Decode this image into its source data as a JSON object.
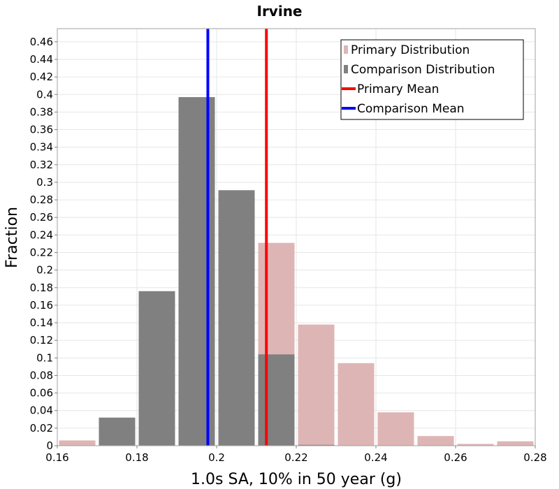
{
  "chart_data": {
    "type": "bar",
    "title": "Irvine",
    "xlabel": "1.0s SA, 10% in 50 year (g)",
    "ylabel": "Fraction",
    "xlim": [
      0.16,
      0.28
    ],
    "ylim": [
      0,
      0.475
    ],
    "bin_width": 0.01,
    "x_ticks": [
      "0.16",
      "0.18",
      "0.2",
      "0.22",
      "0.24",
      "0.26",
      "0.28"
    ],
    "y_ticks": [
      "0",
      "0.02",
      "0.04",
      "0.06",
      "0.08",
      "0.1",
      "0.12",
      "0.14",
      "0.16",
      "0.18",
      "0.2",
      "0.22",
      "0.24",
      "0.26",
      "0.28",
      "0.3",
      "0.32",
      "0.34",
      "0.36",
      "0.38",
      "0.4",
      "0.42",
      "0.44",
      "0.46"
    ],
    "grid": true,
    "legend_position": "top-right",
    "series": [
      {
        "name": "Primary Distribution",
        "kind": "histogram",
        "color": "#deb5b5",
        "bins": [
          {
            "x": 0.16,
            "value": 0.006
          },
          {
            "x": 0.21,
            "value": 0.231
          },
          {
            "x": 0.22,
            "value": 0.138
          },
          {
            "x": 0.23,
            "value": 0.094
          },
          {
            "x": 0.24,
            "value": 0.038
          },
          {
            "x": 0.25,
            "value": 0.011
          },
          {
            "x": 0.26,
            "value": 0.002
          },
          {
            "x": 0.27,
            "value": 0.005
          }
        ]
      },
      {
        "name": "Comparison Distribution",
        "kind": "histogram",
        "color": "#808080",
        "bins": [
          {
            "x": 0.17,
            "value": 0.032
          },
          {
            "x": 0.18,
            "value": 0.176
          },
          {
            "x": 0.19,
            "value": 0.397
          },
          {
            "x": 0.2,
            "value": 0.291
          },
          {
            "x": 0.21,
            "value": 0.104
          },
          {
            "x": 0.22,
            "value": 0.001
          }
        ]
      },
      {
        "name": "Primary Mean",
        "kind": "vline",
        "color": "#ff0000",
        "x": 0.2125
      },
      {
        "name": "Comparison Mean",
        "kind": "vline",
        "color": "#0000ff",
        "x": 0.1978
      }
    ]
  }
}
